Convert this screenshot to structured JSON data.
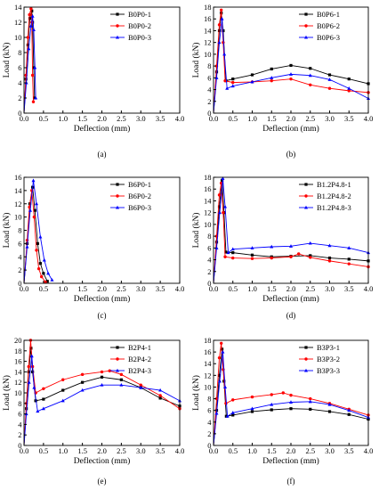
{
  "chart_data": [
    {
      "panel_label": "(a)",
      "type": "line",
      "xlabel": "Deflection (mm)",
      "ylabel": "Load (kN)",
      "xlim": [
        0,
        4.0
      ],
      "ylim": [
        0,
        14
      ],
      "xticks": [
        "0.0",
        "0.5",
        "1.0",
        "1.5",
        "2.0",
        "2.5",
        "3.0",
        "3.5",
        "4.0"
      ],
      "yticks": [
        "0",
        "2",
        "4",
        "6",
        "8",
        "10",
        "12",
        "14"
      ],
      "legend": "top-right",
      "series": [
        {
          "name": "B0P0-1",
          "color": "#000000",
          "marker": "square",
          "x": [
            0,
            0.05,
            0.1,
            0.15,
            0.2,
            0.22,
            0.25,
            0.27
          ],
          "y": [
            0,
            4.5,
            9,
            12.5,
            13.5,
            12,
            6,
            2
          ]
        },
        {
          "name": "B0P0-2",
          "color": "#ff0000",
          "marker": "circle",
          "x": [
            0,
            0.05,
            0.1,
            0.14,
            0.18,
            0.2,
            0.22,
            0.24
          ],
          "y": [
            0,
            5,
            10,
            13,
            13.8,
            12,
            5,
            1.5
          ]
        },
        {
          "name": "B0P0-3",
          "color": "#0000ff",
          "marker": "triangle",
          "x": [
            0,
            0.06,
            0.12,
            0.18,
            0.22,
            0.25,
            0.28,
            0.3
          ],
          "y": [
            0,
            4,
            8.5,
            11.5,
            12.8,
            11,
            6,
            2
          ]
        }
      ]
    },
    {
      "panel_label": "(b)",
      "type": "line",
      "xlabel": "Deflection (mm)",
      "ylabel": "Load (kN)",
      "xlim": [
        0,
        4.0
      ],
      "ylim": [
        0,
        18
      ],
      "xticks": [
        "0.0",
        "0.5",
        "1.0",
        "1.5",
        "2.0",
        "2.5",
        "3.0",
        "3.5",
        "4.0"
      ],
      "yticks": [
        "0",
        "2",
        "4",
        "6",
        "8",
        "10",
        "12",
        "14",
        "16",
        "18"
      ],
      "legend": "top-right",
      "series": [
        {
          "name": "B0P6-1",
          "color": "#000000",
          "marker": "square",
          "x": [
            0,
            0.08,
            0.15,
            0.2,
            0.25,
            0.32,
            0.5,
            1.0,
            1.5,
            2.0,
            2.5,
            3.0,
            3.5,
            4.0
          ],
          "y": [
            0,
            7,
            14,
            17,
            14,
            5.5,
            5.8,
            6.5,
            7.5,
            8.1,
            7.6,
            6.5,
            5.8,
            5.0
          ]
        },
        {
          "name": "B0P6-2",
          "color": "#ff0000",
          "marker": "circle",
          "x": [
            0,
            0.08,
            0.15,
            0.2,
            0.25,
            0.3,
            0.5,
            1.0,
            1.5,
            2.0,
            2.5,
            3.0,
            3.5,
            4.0
          ],
          "y": [
            0,
            8,
            15,
            17.5,
            12,
            5.5,
            5.2,
            5.3,
            5.5,
            5.8,
            4.8,
            4.2,
            3.8,
            3.5
          ]
        },
        {
          "name": "B0P6-3",
          "color": "#0000ff",
          "marker": "triangle",
          "x": [
            0,
            0.08,
            0.15,
            0.22,
            0.28,
            0.35,
            0.5,
            1.0,
            1.5,
            2.0,
            2.5,
            3.0,
            3.5,
            4.0
          ],
          "y": [
            0,
            6,
            12,
            16,
            10,
            4.2,
            4.6,
            5.3,
            6.0,
            6.6,
            6.4,
            5.7,
            4.2,
            2.5
          ]
        }
      ]
    },
    {
      "panel_label": "(c)",
      "type": "line",
      "xlabel": "Deflection (mm)",
      "ylabel": "Load (kN)",
      "xlim": [
        0,
        4.0
      ],
      "ylim": [
        0,
        16
      ],
      "xticks": [
        "0.0",
        "0.5",
        "1.0",
        "1.5",
        "2.0",
        "2.5",
        "3.0",
        "3.5",
        "4.0"
      ],
      "yticks": [
        "0",
        "2",
        "4",
        "6",
        "8",
        "10",
        "12",
        "14",
        "16"
      ],
      "legend": "top-right",
      "series": [
        {
          "name": "B6P0-1",
          "color": "#000000",
          "marker": "square",
          "x": [
            0,
            0.08,
            0.15,
            0.22,
            0.28,
            0.35,
            0.42,
            0.5,
            0.6
          ],
          "y": [
            0,
            6,
            12,
            14.5,
            11,
            6,
            3,
            1.5,
            0.3
          ]
        },
        {
          "name": "B6P0-2",
          "color": "#ff0000",
          "marker": "circle",
          "x": [
            0,
            0.08,
            0.14,
            0.2,
            0.26,
            0.32,
            0.38,
            0.45,
            0.55
          ],
          "y": [
            0,
            6.5,
            11.5,
            14,
            10,
            5,
            2.2,
            1,
            0.2
          ]
        },
        {
          "name": "B6P0-3",
          "color": "#0000ff",
          "marker": "triangle",
          "x": [
            0,
            0.08,
            0.16,
            0.24,
            0.32,
            0.42,
            0.52,
            0.62,
            0.72
          ],
          "y": [
            0,
            5.5,
            11,
            15.5,
            12,
            7,
            3.5,
            1.5,
            0.5
          ]
        }
      ]
    },
    {
      "panel_label": "(d)",
      "type": "line",
      "xlabel": "Deflection (mm)",
      "ylabel": "Load (kN)",
      "xlim": [
        0,
        4.0
      ],
      "ylim": [
        0,
        18
      ],
      "xticks": [
        "0.0",
        "0.5",
        "1.0",
        "1.5",
        "2.0",
        "2.5",
        "3.0",
        "3.5",
        "4.0"
      ],
      "yticks": [
        "0",
        "2",
        "4",
        "6",
        "8",
        "10",
        "12",
        "14",
        "16",
        "18"
      ],
      "legend": "top-right",
      "series": [
        {
          "name": "B1.2P4.8-1",
          "color": "#000000",
          "marker": "square",
          "x": [
            0,
            0.08,
            0.15,
            0.22,
            0.27,
            0.32,
            0.5,
            1.0,
            1.5,
            2.0,
            2.5,
            3.0,
            3.5,
            4.0
          ],
          "y": [
            0,
            7,
            13,
            17.5,
            12,
            5.3,
            5.2,
            4.8,
            4.5,
            4.6,
            4.7,
            4.3,
            4.1,
            3.8
          ]
        },
        {
          "name": "B1.2P4.8-2",
          "color": "#ff0000",
          "marker": "circle",
          "x": [
            0,
            0.08,
            0.15,
            0.2,
            0.25,
            0.3,
            0.5,
            1.0,
            1.5,
            2.0,
            2.2,
            2.5,
            3.0,
            3.5,
            4.0
          ],
          "y": [
            0,
            8,
            15,
            17,
            12,
            4.5,
            4.3,
            4.2,
            4.3,
            4.5,
            5.0,
            4.4,
            3.8,
            3.3,
            2.8
          ]
        },
        {
          "name": "B1.2P4.8-3",
          "color": "#0000ff",
          "marker": "triangle",
          "x": [
            0,
            0.08,
            0.16,
            0.24,
            0.3,
            0.38,
            0.5,
            1.0,
            1.5,
            2.0,
            2.5,
            3.0,
            3.5,
            4.0
          ],
          "y": [
            0,
            6,
            12,
            17.8,
            13,
            5.2,
            5.8,
            6.0,
            6.2,
            6.3,
            6.8,
            6.4,
            6.0,
            5.2
          ]
        }
      ]
    },
    {
      "panel_label": "(e)",
      "type": "line",
      "xlabel": "Deflection (mm)",
      "ylabel": "Load (kN)",
      "xlim": [
        0,
        4.0
      ],
      "ylim": [
        0,
        20
      ],
      "xticks": [
        "0.0",
        "0.5",
        "1.0",
        "1.5",
        "2.0",
        "2.5",
        "3.0",
        "3.5",
        "4.0"
      ],
      "yticks": [
        "0",
        "2",
        "4",
        "6",
        "8",
        "10",
        "12",
        "14",
        "16",
        "18",
        "20"
      ],
      "legend": "top-right",
      "series": [
        {
          "name": "B2P4-1",
          "color": "#000000",
          "marker": "square",
          "x": [
            0,
            0.06,
            0.12,
            0.18,
            0.22,
            0.3,
            0.5,
            1.0,
            1.5,
            2.0,
            2.5,
            3.0,
            3.5,
            4.0
          ],
          "y": [
            0,
            7,
            14,
            18.5,
            14,
            8.5,
            8.8,
            10.5,
            12,
            13,
            12.5,
            11,
            9,
            7.5
          ]
        },
        {
          "name": "B2P4-2",
          "color": "#ff0000",
          "marker": "circle",
          "x": [
            0,
            0.06,
            0.12,
            0.17,
            0.22,
            0.3,
            0.5,
            1.0,
            1.5,
            2.0,
            2.2,
            2.5,
            3.0,
            3.5,
            4.0
          ],
          "y": [
            0,
            8,
            15,
            20,
            15,
            10,
            10.8,
            12.5,
            13.5,
            14,
            14.2,
            13.5,
            11.5,
            9.5,
            7.0
          ]
        },
        {
          "name": "B2P4-3",
          "color": "#0000ff",
          "marker": "triangle",
          "x": [
            0,
            0.06,
            0.13,
            0.2,
            0.26,
            0.35,
            0.5,
            1.0,
            1.5,
            2.0,
            2.5,
            3.0,
            3.5,
            4.0
          ],
          "y": [
            0,
            6,
            12,
            17,
            11,
            6.5,
            7,
            8.5,
            10.5,
            11.5,
            11.5,
            11,
            10.5,
            8.5
          ]
        }
      ]
    },
    {
      "panel_label": "(f)",
      "type": "line",
      "xlabel": "Deflection (mm)",
      "ylabel": "Load (kN)",
      "xlim": [
        0,
        4.0
      ],
      "ylim": [
        0,
        18
      ],
      "xticks": [
        "0.0",
        "0.5",
        "1.0",
        "1.5",
        "2.0",
        "2.5",
        "3.0",
        "3.5",
        "4.0"
      ],
      "yticks": [
        "0",
        "2",
        "4",
        "6",
        "8",
        "10",
        "12",
        "14",
        "16",
        "18"
      ],
      "legend": "top-right",
      "series": [
        {
          "name": "B3P3-1",
          "color": "#000000",
          "marker": "square",
          "x": [
            0,
            0.08,
            0.15,
            0.22,
            0.27,
            0.33,
            0.5,
            1.0,
            1.5,
            2.0,
            2.5,
            3.0,
            3.5,
            4.0
          ],
          "y": [
            0,
            6,
            12,
            16.5,
            11,
            5.0,
            5.2,
            5.8,
            6.1,
            6.3,
            6.2,
            5.8,
            5.3,
            4.5
          ]
        },
        {
          "name": "B3P3-2",
          "color": "#ff0000",
          "marker": "circle",
          "x": [
            0,
            0.08,
            0.15,
            0.2,
            0.25,
            0.32,
            0.5,
            1.0,
            1.5,
            1.8,
            2.0,
            2.5,
            3.0,
            3.5,
            4.0
          ],
          "y": [
            0,
            8,
            15,
            17.5,
            13,
            7.2,
            7.8,
            8.3,
            8.7,
            9.0,
            8.6,
            8.0,
            7.2,
            6.2,
            5.2
          ]
        },
        {
          "name": "B3P3-3",
          "color": "#0000ff",
          "marker": "triangle",
          "x": [
            0,
            0.08,
            0.16,
            0.24,
            0.3,
            0.36,
            0.5,
            1.0,
            1.5,
            2.0,
            2.5,
            3.0,
            3.5,
            4.0
          ],
          "y": [
            0,
            5.5,
            11,
            16,
            10,
            5,
            5.6,
            6.3,
            7.0,
            7.4,
            7.5,
            7.0,
            6.0,
            4.8
          ]
        }
      ]
    }
  ]
}
